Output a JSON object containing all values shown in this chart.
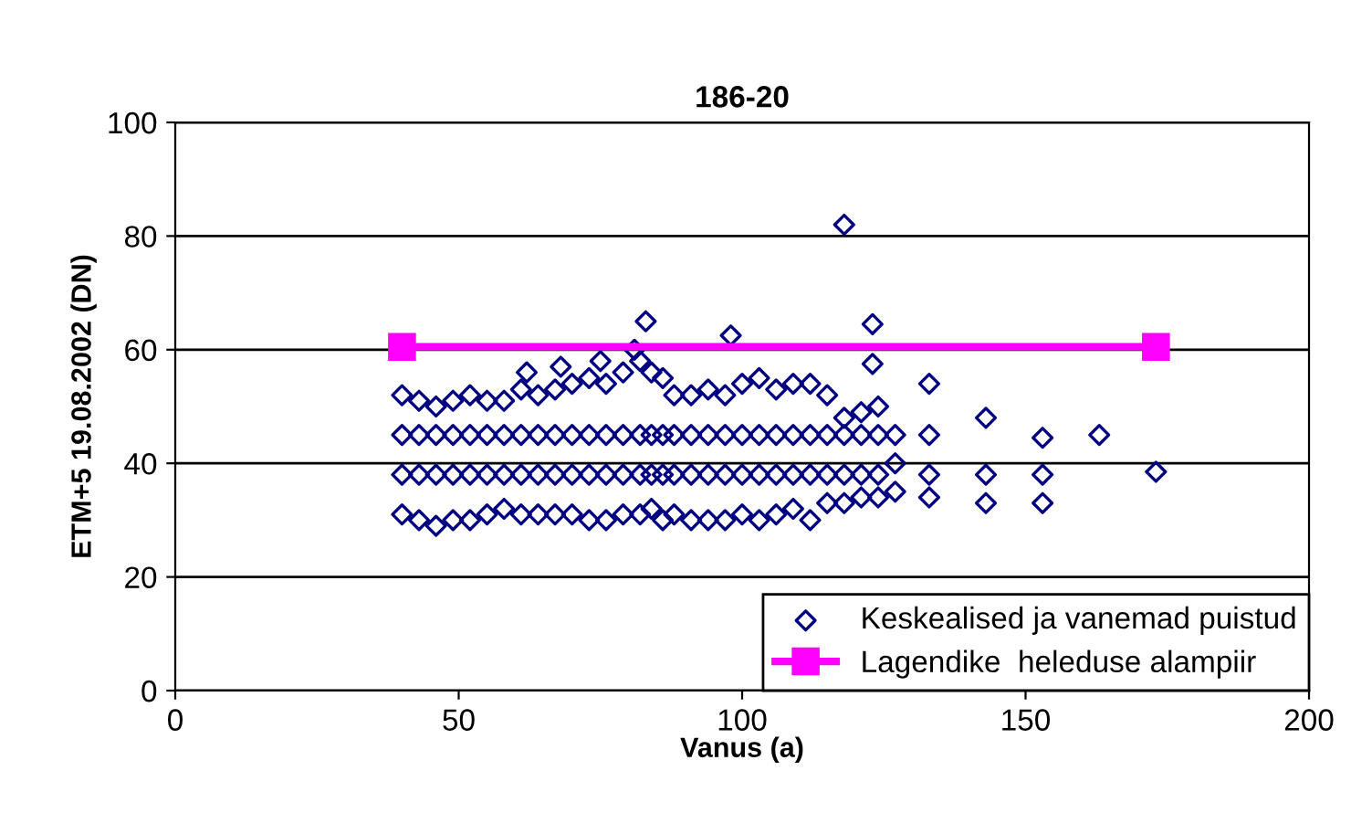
{
  "chart_data": {
    "type": "scatter",
    "title": "186-20",
    "xlabel": "Vanus (a)",
    "ylabel": "ETM+5 19.08.2002 (DN)",
    "xlim": [
      0,
      200
    ],
    "xticks": [
      0,
      50,
      100,
      150,
      200
    ],
    "ylim": [
      0,
      100
    ],
    "yticks": [
      0,
      20,
      40,
      60,
      80,
      100
    ],
    "grid": "y",
    "legend": "bottom right",
    "series": [
      {
        "name": "Keskealised ja vanemad puistud",
        "marker": "diamond",
        "color": "#000080",
        "x": [
          40,
          40,
          40,
          40,
          43,
          43,
          43,
          43,
          46,
          46,
          46,
          46,
          49,
          49,
          49,
          49,
          52,
          52,
          52,
          52,
          55,
          55,
          55,
          55,
          58,
          58,
          58,
          58,
          61,
          61,
          61,
          61,
          64,
          64,
          64,
          64,
          67,
          67,
          67,
          67,
          70,
          70,
          70,
          70,
          73,
          73,
          73,
          73,
          76,
          76,
          76,
          76,
          79,
          79,
          79,
          79,
          82,
          82,
          82,
          82,
          84,
          84,
          84,
          84,
          86,
          86,
          86,
          86,
          88,
          88,
          88,
          88,
          91,
          91,
          91,
          91,
          94,
          94,
          94,
          94,
          97,
          97,
          97,
          97,
          100,
          100,
          100,
          100,
          103,
          103,
          103,
          103,
          106,
          106,
          106,
          106,
          109,
          109,
          109,
          109,
          112,
          112,
          112,
          112,
          115,
          115,
          115,
          115,
          118,
          118,
          118,
          118,
          121,
          121,
          121,
          121,
          124,
          124,
          124,
          124,
          127,
          127,
          127,
          133,
          133,
          133,
          133,
          118,
          83,
          98,
          123,
          123,
          81,
          62,
          68,
          75,
          143,
          143,
          143,
          153,
          153,
          153,
          163,
          173
        ],
        "values": [
          31,
          38,
          45,
          52,
          30,
          38,
          45,
          51,
          29,
          38,
          45,
          50,
          30,
          38,
          45,
          51,
          30,
          38,
          45,
          52,
          31,
          38,
          45,
          51,
          32,
          38,
          45,
          51,
          31,
          38,
          45,
          53,
          31,
          38,
          45,
          52,
          31,
          38,
          45,
          53,
          31,
          38,
          45,
          54,
          30,
          38,
          45,
          55,
          30,
          38,
          45,
          54,
          31,
          38,
          45,
          56,
          31,
          38,
          45,
          58,
          32,
          38,
          45,
          56,
          30,
          38,
          45,
          55,
          31,
          38,
          45,
          52,
          30,
          38,
          45,
          52,
          30,
          38,
          45,
          53,
          30,
          38,
          45,
          52,
          31,
          38,
          45,
          54,
          30,
          38,
          45,
          55,
          31,
          38,
          45,
          53,
          32,
          38,
          45,
          54,
          30,
          38,
          45,
          54,
          33,
          38,
          45,
          52,
          33,
          38,
          45,
          48,
          34,
          38,
          45,
          49,
          34,
          38,
          45,
          50,
          35,
          40,
          45,
          34,
          38,
          45,
          54,
          82,
          65,
          62.5,
          64.5,
          57.5,
          60,
          56,
          57,
          58,
          33,
          38,
          48,
          33,
          38,
          44.5,
          45,
          38.5
        ]
      },
      {
        "name": "Lagendike  heleduse alampiir",
        "type": "line",
        "marker": "square",
        "line_style": "solid",
        "color": "#ff00ff",
        "x": [
          40,
          173
        ],
        "values": [
          60.5,
          60.5
        ]
      }
    ]
  }
}
